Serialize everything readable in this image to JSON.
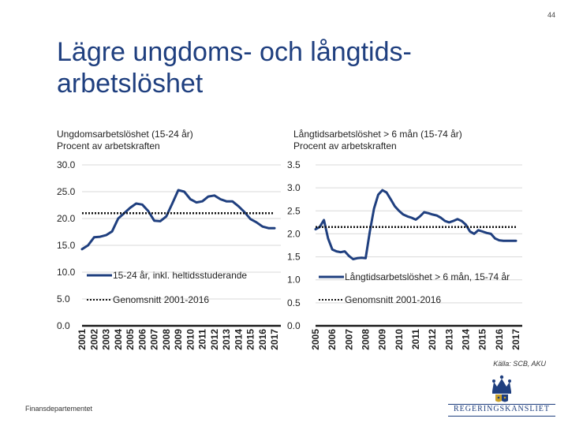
{
  "page_number": "44",
  "title": "Lägre ungdoms- och långtids-arbetslöshet",
  "source": "Källa: SCB, AKU",
  "footer": "Finansdepartementet",
  "logo_text": "REGERINGSKANSLIET",
  "colors": {
    "title": "#1f3f7f",
    "series": "#1f3f7f",
    "average": "#111111",
    "axis": "#444444"
  },
  "chart_data": [
    {
      "type": "line",
      "title": "Ungdomsarbetslöshet  (15-24 år)",
      "subtitle": "Procent av arbetskraften",
      "ylim": [
        0,
        30
      ],
      "yticks": [
        "0.0",
        "5.0",
        "10.0",
        "15.0",
        "20.0",
        "25.0",
        "30.0"
      ],
      "xlim": [
        2001,
        2017
      ],
      "xticks": [
        "2001",
        "2002",
        "2003",
        "2004",
        "2005",
        "2006",
        "2007",
        "2008",
        "2009",
        "2010",
        "2011",
        "2012",
        "2013",
        "2014",
        "2015",
        "2016",
        "2017"
      ],
      "series": [
        {
          "name": "15-24 år, inkl. heltidsstuderande",
          "style": "solid",
          "x": [
            2001.0,
            2001.5,
            2002.0,
            2002.5,
            2003.0,
            2003.5,
            2004.0,
            2004.5,
            2005.0,
            2005.5,
            2006.0,
            2006.5,
            2007.0,
            2007.5,
            2008.0,
            2008.5,
            2009.0,
            2009.5,
            2010.0,
            2010.5,
            2011.0,
            2011.5,
            2012.0,
            2012.5,
            2013.0,
            2013.5,
            2014.0,
            2014.5,
            2015.0,
            2015.5,
            2016.0,
            2016.5,
            2017.0
          ],
          "values": [
            14.3,
            15.0,
            16.5,
            16.6,
            16.9,
            17.6,
            20.0,
            21.0,
            22.0,
            22.8,
            22.6,
            21.4,
            19.6,
            19.5,
            20.4,
            22.8,
            25.3,
            25.0,
            23.6,
            23.0,
            23.2,
            24.1,
            24.3,
            23.6,
            23.2,
            23.2,
            22.3,
            21.2,
            19.9,
            19.3,
            18.5,
            18.2,
            18.2
          ]
        },
        {
          "name": "Genomsnitt 2001-2016",
          "style": "dotted",
          "x": [
            2001,
            2017
          ],
          "values": [
            21.0,
            21.0
          ]
        }
      ]
    },
    {
      "type": "line",
      "title": "Långtidsarbetslöshet  > 6 mån (15-74 år)",
      "subtitle": "Procent av arbetskraften",
      "ylim": [
        0,
        3.5
      ],
      "yticks": [
        "0.0",
        "0.5",
        "1.0",
        "1.5",
        "2.0",
        "2.5",
        "3.0",
        "3.5"
      ],
      "xlim": [
        2005,
        2017
      ],
      "xticks": [
        "2005",
        "2006",
        "2007",
        "2008",
        "2009",
        "2010",
        "2011",
        "2012",
        "2013",
        "2014",
        "2015",
        "2016",
        "2017"
      ],
      "series": [
        {
          "name": "Långtidsarbetslöshet > 6 mån, 15-74 år",
          "style": "solid",
          "x": [
            2005.0,
            2005.25,
            2005.5,
            2005.75,
            2006.0,
            2006.25,
            2006.5,
            2006.75,
            2007.0,
            2007.25,
            2007.5,
            2007.75,
            2008.0,
            2008.25,
            2008.5,
            2008.75,
            2009.0,
            2009.25,
            2009.5,
            2009.75,
            2010.0,
            2010.25,
            2010.5,
            2010.75,
            2011.0,
            2011.25,
            2011.5,
            2011.75,
            2012.0,
            2012.25,
            2012.5,
            2012.75,
            2013.0,
            2013.25,
            2013.5,
            2013.75,
            2014.0,
            2014.25,
            2014.5,
            2014.75,
            2015.0,
            2015.25,
            2015.5,
            2015.75,
            2016.0,
            2016.25,
            2016.5,
            2016.75,
            2017.0
          ],
          "values": [
            2.1,
            2.15,
            2.3,
            1.9,
            1.66,
            1.62,
            1.6,
            1.62,
            1.52,
            1.45,
            1.47,
            1.48,
            1.47,
            2.05,
            2.55,
            2.85,
            2.95,
            2.9,
            2.75,
            2.6,
            2.5,
            2.42,
            2.38,
            2.35,
            2.31,
            2.38,
            2.47,
            2.45,
            2.42,
            2.4,
            2.35,
            2.28,
            2.25,
            2.28,
            2.32,
            2.28,
            2.2,
            2.05,
            2.0,
            2.08,
            2.05,
            2.02,
            2.0,
            1.9,
            1.86,
            1.85,
            1.85,
            1.85,
            1.85
          ]
        },
        {
          "name": "Genomsnitt 2001-2016",
          "style": "dotted",
          "x": [
            2005,
            2017
          ],
          "values": [
            2.15,
            2.15
          ]
        }
      ]
    }
  ]
}
